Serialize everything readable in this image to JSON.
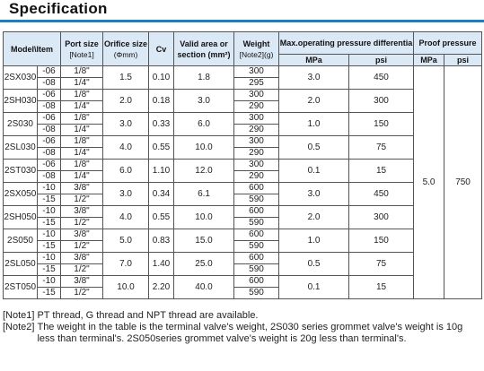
{
  "title": "Specification",
  "header": {
    "model": "Model\\Item",
    "port_size": "Port size",
    "port_note": "[Note1]",
    "orifice": "Orifice size",
    "orifice_unit": "(Φmm)",
    "cv": "Cv",
    "valid_area": "Valid area or",
    "valid_area2": "section (mm²)",
    "weight": "Weight",
    "weight_note": "[Note2](g)",
    "max_pressure": "Max.operating pressure differentia",
    "proof_pressure": "Proof pressure",
    "mpa": "MPa",
    "psi": "psi",
    "proof_mpa": "MPa",
    "proof_psi": "psi"
  },
  "rows": [
    {
      "model": "2SX030",
      "s1": "-06",
      "s2": "-08",
      "p1": "1/8\"",
      "p2": "1/4\"",
      "orifice": "1.5",
      "cv": "0.10",
      "area": "1.8",
      "w1": "300",
      "w2": "295",
      "mpa": "3.0",
      "psi": "450"
    },
    {
      "model": "2SH030",
      "s1": "-06",
      "s2": "-08",
      "p1": "1/8\"",
      "p2": "1/4\"",
      "orifice": "2.0",
      "cv": "0.18",
      "area": "3.0",
      "w1": "300",
      "w2": "290",
      "mpa": "2.0",
      "psi": "300"
    },
    {
      "model": "2S030",
      "s1": "-06",
      "s2": "-08",
      "p1": "1/8\"",
      "p2": "1/4\"",
      "orifice": "3.0",
      "cv": "0.33",
      "area": "6.0",
      "w1": "300",
      "w2": "290",
      "mpa": "1.0",
      "psi": "150"
    },
    {
      "model": "2SL030",
      "s1": "-06",
      "s2": "-08",
      "p1": "1/8\"",
      "p2": "1/4\"",
      "orifice": "4.0",
      "cv": "0.55",
      "area": "10.0",
      "w1": "300",
      "w2": "290",
      "mpa": "0.5",
      "psi": "75"
    },
    {
      "model": "2ST030",
      "s1": "-06",
      "s2": "-08",
      "p1": "1/8\"",
      "p2": "1/4\"",
      "orifice": "6.0",
      "cv": "1.10",
      "area": "12.0",
      "w1": "300",
      "w2": "290",
      "mpa": "0.1",
      "psi": "15"
    },
    {
      "model": "2SX050",
      "s1": "-10",
      "s2": "-15",
      "p1": "3/8\"",
      "p2": "1/2\"",
      "orifice": "3.0",
      "cv": "0.34",
      "area": "6.1",
      "w1": "600",
      "w2": "590",
      "mpa": "3.0",
      "psi": "450"
    },
    {
      "model": "2SH050",
      "s1": "-10",
      "s2": "-15",
      "p1": "3/8\"",
      "p2": "1/2\"",
      "orifice": "4.0",
      "cv": "0.55",
      "area": "10.0",
      "w1": "600",
      "w2": "590",
      "mpa": "2.0",
      "psi": "300"
    },
    {
      "model": "2S050",
      "s1": "-10",
      "s2": "-15",
      "p1": "3/8\"",
      "p2": "1/2\"",
      "orifice": "5.0",
      "cv": "0.83",
      "area": "15.0",
      "w1": "600",
      "w2": "590",
      "mpa": "1.0",
      "psi": "150"
    },
    {
      "model": "2SL050",
      "s1": "-10",
      "s2": "-15",
      "p1": "3/8\"",
      "p2": "1/2\"",
      "orifice": "7.0",
      "cv": "1.40",
      "area": "25.0",
      "w1": "600",
      "w2": "590",
      "mpa": "0.5",
      "psi": "75"
    },
    {
      "model": "2ST050",
      "s1": "-10",
      "s2": "-15",
      "p1": "3/8\"",
      "p2": "1/2\"",
      "orifice": "10.0",
      "cv": "2.20",
      "area": "40.0",
      "w1": "600",
      "w2": "590",
      "mpa": "0.1",
      "psi": "15"
    }
  ],
  "proof": {
    "mpa": "5.0",
    "psi": "750"
  },
  "notes": [
    {
      "tag": "[Note1]",
      "text": "PT thread, G thread and NPT thread are available."
    },
    {
      "tag": "[Note2]",
      "text": "The weight in the table is the terminal valve's weight, 2S030 series grommet valve's weight is 10g less than terminal's. 2S050series grommet valve's weight is 20g less than terminal's."
    }
  ]
}
